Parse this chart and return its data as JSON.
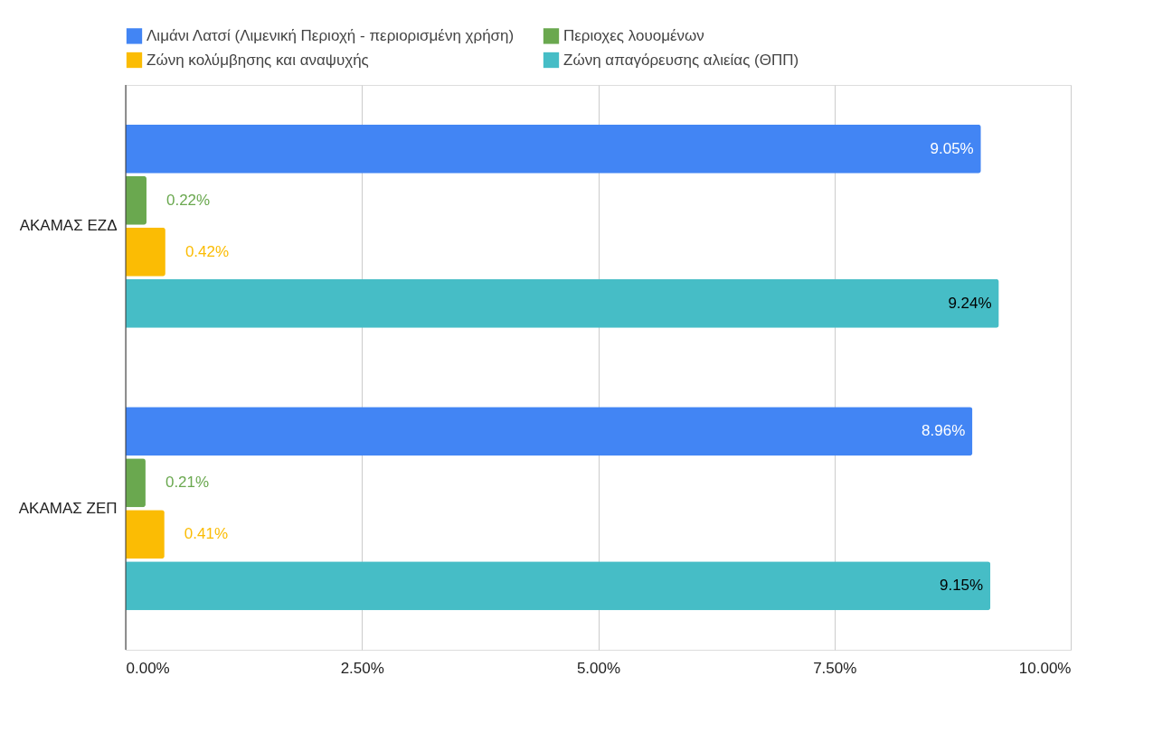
{
  "chart_data": {
    "type": "bar",
    "orientation": "horizontal",
    "categories": [
      "ΑΚΑΜΑΣ ΕΖΔ",
      "ΑΚΑΜΑΣ ΖΕΠ"
    ],
    "series": [
      {
        "name": "Λιμάνι Λατσί (Λιμενική Περιοχή - περιορισμένη χρήση)",
        "color": "#4285f4",
        "values": [
          9.05,
          8.96
        ],
        "value_labels": [
          "9.05%",
          "8.96%"
        ]
      },
      {
        "name": "Περιοχες λουομένων",
        "color": "#6aa84f",
        "values": [
          0.22,
          0.21
        ],
        "value_labels": [
          "0.22%",
          "0.21%"
        ]
      },
      {
        "name": "Ζώνη κολύμβησης και αναψυχής",
        "color": "#fbbc04",
        "values": [
          0.42,
          0.41
        ],
        "value_labels": [
          "0.42%",
          "0.41%"
        ]
      },
      {
        "name": "Ζώνη απαγόρευσης αλιείας (ΘΠΠ)",
        "color": "#46bdc6",
        "values": [
          9.24,
          9.15
        ],
        "value_labels": [
          "9.24%",
          "9.15%"
        ]
      }
    ],
    "xlim": [
      0,
      10
    ],
    "xticks": [
      {
        "value": 0,
        "label": "0.00%"
      },
      {
        "value": 2.5,
        "label": "2.50%"
      },
      {
        "value": 5,
        "label": "5.00%"
      },
      {
        "value": 7.5,
        "label": "7.50%"
      },
      {
        "value": 10,
        "label": "10.00%"
      }
    ],
    "grid": "x",
    "legend": "top"
  }
}
